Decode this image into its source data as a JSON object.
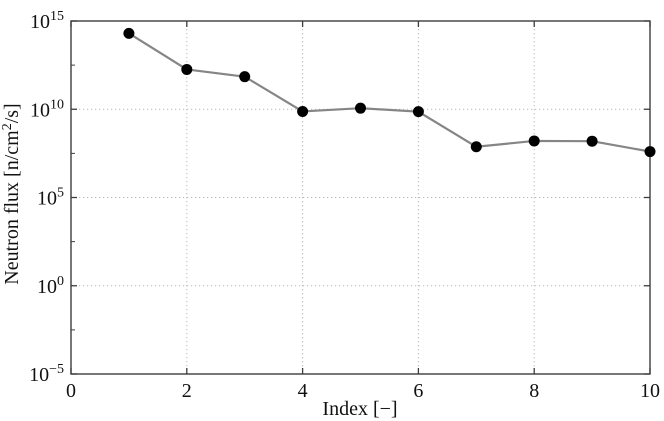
{
  "figure": {
    "background": "#ffffff",
    "frame_color": "#3d3d3d",
    "grid_color": "#b8b8b8",
    "line_color": "#858585",
    "marker_color": "#000000",
    "text_color": "#111111"
  },
  "chart_data": {
    "type": "line",
    "title": "",
    "xlabel": "Index [−]",
    "ylabel": "Neutron flux [n/cm^2/s]",
    "ylabel_parts": {
      "prefix": "Neutron flux [n/cm",
      "sup": "2",
      "suffix": "/s]"
    },
    "x": [
      1,
      2,
      3,
      4,
      5,
      6,
      7,
      8,
      9,
      10
    ],
    "y": [
      200000000000000.0,
      1800000000000.0,
      700000000000.0,
      7500000000.0,
      11500000000.0,
      7300000000.0,
      75000000.0,
      160000000.0,
      155000000.0,
      40000000.0
    ],
    "xlim": [
      0,
      10
    ],
    "ylim": [
      1e-05,
      1000000000000000.0
    ],
    "x_scale": "linear",
    "y_scale": "log",
    "x_ticks": [
      0,
      2,
      4,
      6,
      8,
      10
    ],
    "y_tick_values": [
      1000000000000000.0,
      10000000000.0,
      100000.0,
      1,
      1e-05
    ],
    "y_tick_base": "10",
    "y_tick_exponents": [
      "15",
      "10",
      "5",
      "0",
      "−5"
    ],
    "grid": "dotted",
    "legend": "none",
    "marker": "filled-circle",
    "line_style": "solid"
  }
}
